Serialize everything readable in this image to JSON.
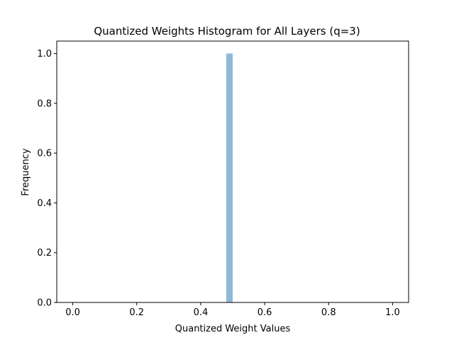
{
  "chart_data": {
    "type": "bar",
    "title": "Quantized Weights Histogram for All Layers (q=3)",
    "xlabel": "Quantized Weight Values",
    "ylabel": "Frequency",
    "xlim": [
      -0.05,
      1.05
    ],
    "ylim": [
      0.0,
      1.05
    ],
    "xticks": [
      0.0,
      0.2,
      0.4,
      0.6,
      0.8,
      1.0
    ],
    "xtick_labels": [
      "0.0",
      "0.2",
      "0.4",
      "0.6",
      "0.8",
      "1.0"
    ],
    "yticks": [
      0.0,
      0.2,
      0.4,
      0.6,
      0.8,
      1.0
    ],
    "ytick_labels": [
      "0.0",
      "0.2",
      "0.4",
      "0.6",
      "0.8",
      "1.0"
    ],
    "bins": [
      {
        "x0": 0.48,
        "x1": 0.5,
        "value": 1.0
      }
    ],
    "grid": false,
    "bar_color": "#1f77b4",
    "bar_opacity": 0.5
  }
}
